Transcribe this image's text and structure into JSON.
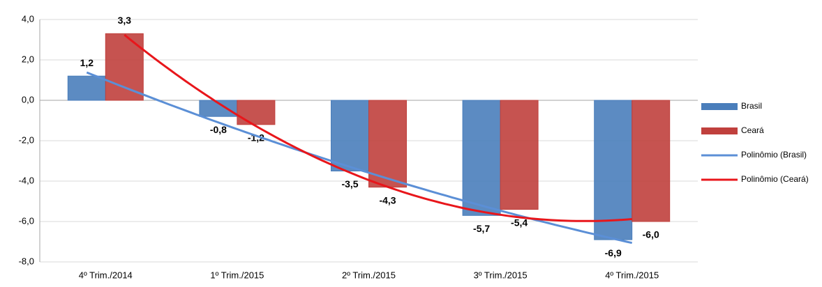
{
  "chart_data": {
    "type": "bar",
    "categories": [
      "4º Trim./2014",
      "1º Trim./2015",
      "2º Trim./2015",
      "3º Trim./2015",
      "4º Trim./2015"
    ],
    "series": [
      {
        "name": "Brasil",
        "color": "#4a7ebb",
        "values": [
          1.2,
          -0.8,
          -3.5,
          -5.7,
          -6.9
        ],
        "value_labels": [
          "1,2",
          "-0,8",
          "-3,5",
          "-5,7",
          "-6,9"
        ],
        "trend": {
          "name": "Polinômio (Brasil)",
          "color": "#5b8fd6",
          "order": 2
        }
      },
      {
        "name": "Ceará",
        "color": "#c0403d",
        "values": [
          3.3,
          -1.2,
          -4.3,
          -5.4,
          -6.0
        ],
        "value_labels": [
          "3,3",
          "-1,2",
          "-4,3",
          "-5,4",
          "-6,0"
        ],
        "trend": {
          "name": "Polinômio (Ceará)",
          "color": "#e8161b",
          "order": 2
        }
      }
    ],
    "ylim": [
      -8,
      4
    ],
    "yticks": [
      {
        "value": -8,
        "label": "-8,0"
      },
      {
        "value": -6,
        "label": "-6,0"
      },
      {
        "value": -4,
        "label": "-4,0"
      },
      {
        "value": -2,
        "label": "-2,0"
      },
      {
        "value": 0,
        "label": "0,0"
      },
      {
        "value": 2,
        "label": "2,0"
      },
      {
        "value": 4,
        "label": "4,0"
      }
    ],
    "grid": true,
    "legend": "right"
  }
}
